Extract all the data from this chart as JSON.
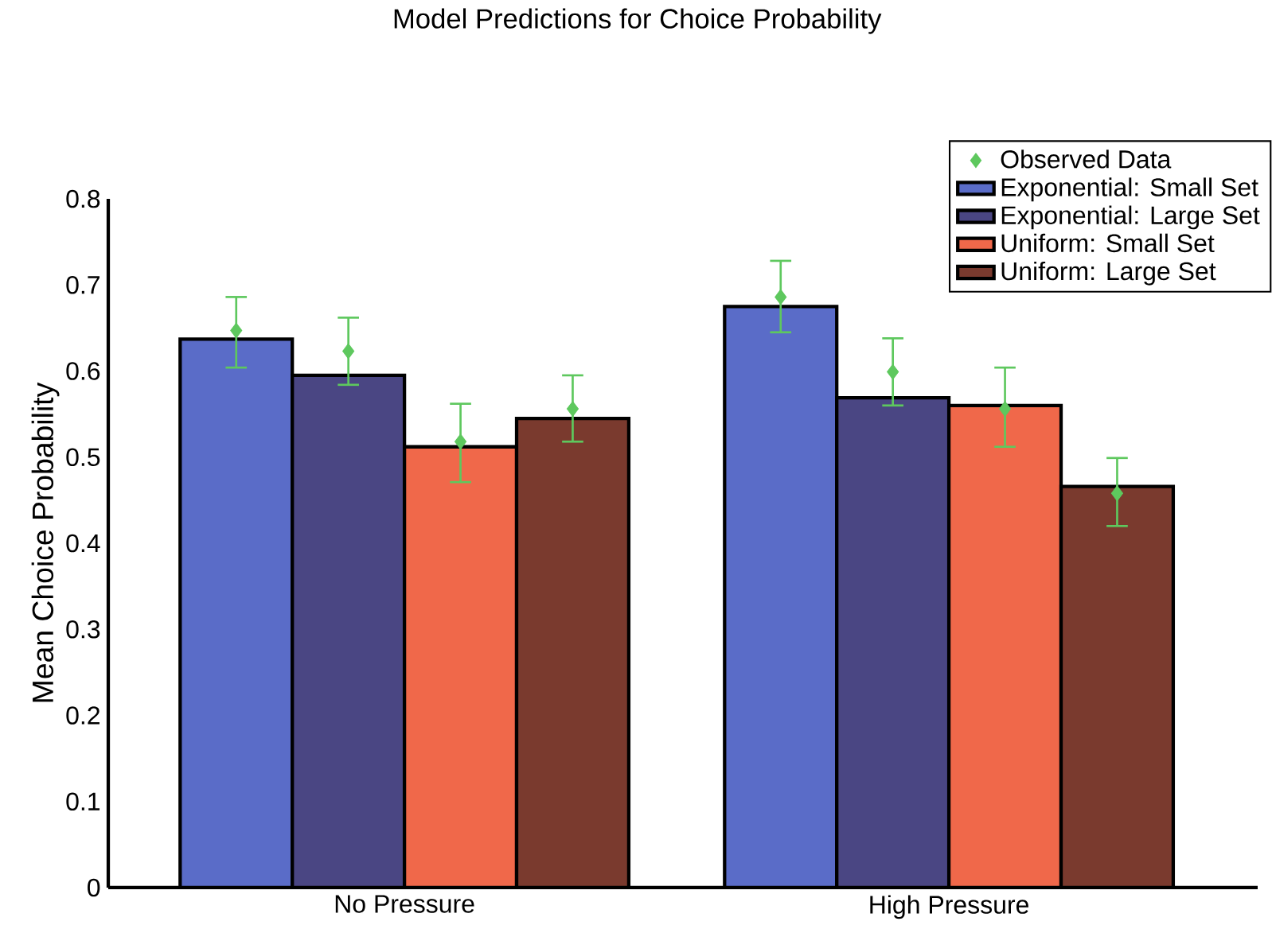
{
  "chart_data": {
    "type": "bar",
    "title": "Model Predictions for Choice Probability",
    "ylabel": "Mean Choice Probability",
    "categories": [
      "No Pressure",
      "High Pressure"
    ],
    "series": [
      {
        "name": "Exponential: Small Set",
        "color": "#5a6cc8",
        "values": [
          0.637,
          0.675
        ]
      },
      {
        "name": "Exponential: Large Set",
        "color": "#4a4683",
        "values": [
          0.595,
          0.569
        ]
      },
      {
        "name": "Uniform: Small Set",
        "color": "#f0684a",
        "values": [
          0.512,
          0.56
        ]
      },
      {
        "name": "Uniform: Large Set",
        "color": "#7a3a2e",
        "values": [
          0.545,
          0.466
        ]
      },
      {
        "name": "Observed Data",
        "type": "scatter",
        "marker": "diamond",
        "color": "#5ec85e",
        "x": [
          "No Pressure",
          "No Pressure",
          "No Pressure",
          "No Pressure",
          "High Pressure",
          "High Pressure",
          "High Pressure",
          "High Pressure"
        ],
        "values": [
          0.647,
          0.623,
          0.518,
          0.556,
          0.686,
          0.599,
          0.556,
          0.458
        ],
        "errors": [
          [
            0.604,
            0.686
          ],
          [
            0.584,
            0.662
          ],
          [
            0.471,
            0.562
          ],
          [
            0.518,
            0.595
          ],
          [
            0.645,
            0.728
          ],
          [
            0.56,
            0.638
          ],
          [
            0.512,
            0.604
          ],
          [
            0.42,
            0.499
          ]
        ]
      }
    ],
    "ylim": [
      0,
      0.8
    ],
    "yticks": [
      0,
      0.1,
      0.2,
      0.3,
      0.4,
      0.5,
      0.6,
      0.7,
      0.8
    ],
    "grid": false,
    "legend": "top right"
  }
}
